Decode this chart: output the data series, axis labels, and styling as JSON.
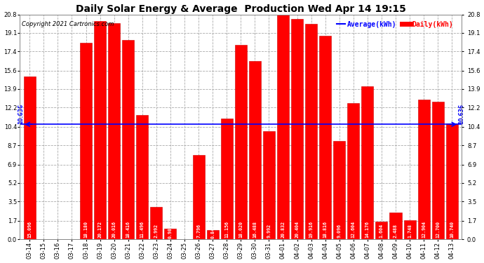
{
  "title": "Daily Solar Energy & Average  Production Wed Apr 14 19:15",
  "copyright": "Copyright 2021 Cartronics.com",
  "categories": [
    "03-14",
    "03-15",
    "03-16",
    "03-17",
    "03-18",
    "03-19",
    "03-20",
    "03-21",
    "03-22",
    "03-23",
    "03-24",
    "03-25",
    "03-26",
    "03-27",
    "03-28",
    "03-29",
    "03-30",
    "03-31",
    "04-01",
    "04-02",
    "04-03",
    "04-04",
    "04-05",
    "04-06",
    "04-07",
    "04-08",
    "04-09",
    "04-10",
    "04-11",
    "04-12",
    "04-13"
  ],
  "values": [
    15.096,
    0.0,
    0.0,
    0.0,
    18.18,
    20.172,
    20.016,
    18.416,
    11.496,
    2.992,
    0.98,
    0.0,
    7.796,
    0.84,
    11.156,
    18.02,
    16.488,
    9.992,
    20.832,
    20.404,
    19.916,
    18.816,
    9.096,
    12.604,
    14.176,
    1.604,
    2.488,
    1.748,
    12.904,
    12.7,
    10.74
  ],
  "average": 10.636,
  "bar_color": "#ff0000",
  "average_color": "#0000ff",
  "background_color": "#ffffff",
  "grid_color": "#aaaaaa",
  "ylim": [
    0.0,
    20.8
  ],
  "yticks": [
    0.0,
    1.7,
    3.5,
    5.2,
    6.9,
    8.7,
    10.4,
    12.2,
    13.9,
    15.6,
    17.4,
    19.1,
    20.8
  ],
  "legend_average_label": "Average(kWh)",
  "legend_daily_label": "Daily(kWh)",
  "value_fontsize": 4.8,
  "title_fontsize": 10,
  "tick_fontsize": 6.0,
  "copyright_fontsize": 6.0
}
